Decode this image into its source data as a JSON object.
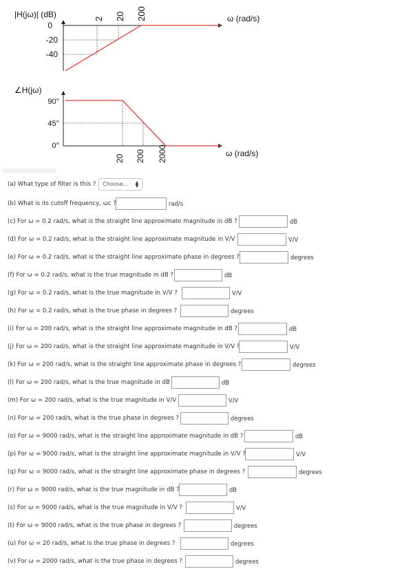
{
  "magnitude_plot": {
    "ylabel": "|H(jω)| (dB)",
    "xlabel": "ω (rad/s)",
    "y_ticks": [
      "0",
      "-20",
      "-40"
    ],
    "x_ticks": [
      "2",
      "20",
      "200"
    ],
    "line_color": "#e53935"
  },
  "phase_plot": {
    "ylabel": "∠H(jω)",
    "xlabel": "ω (rad/s)",
    "y_ticks": [
      "90°",
      "45°",
      "0°"
    ],
    "x_ticks": [
      "20",
      "200",
      "2000"
    ],
    "line_color": "#e53935"
  },
  "filter_select": {
    "placeholder": "Choose..."
  },
  "questions": [
    {
      "text": "(a) What type of filter is this ?",
      "type": "select"
    },
    {
      "text": "(b) What is its cutoff frequency, ωc ?",
      "unit": "rad/s"
    },
    {
      "text": "(c) For ω = 0.2 rad/s, what is the straight line approximate magnitude in dB ?",
      "unit": "dB"
    },
    {
      "text": "(d) For ω = 0.2 rad/s, what is the straight line approximate magnitude in V/V ?",
      "unit": "V/V"
    },
    {
      "text": "(e) For ω = 0.2 rad/s, what is the straight line approximate phase in degrees ?",
      "unit": "degrees"
    },
    {
      "text": "(f) For ω = 0.2 rad/s, what is the true magnitude in dB ?",
      "unit": "dB"
    },
    {
      "text": "(g) For ω = 0.2 rad/s, what is the true magnitude in V/V ?",
      "unit": "V/V"
    },
    {
      "text": "(h) For ω = 0.2 rad/s, what is the true phase in degrees ?",
      "unit": "degrees"
    },
    {
      "text": "(i) For ω = 200 rad/s, what is the straight line approximate magnitude in dB ?",
      "unit": "dB"
    },
    {
      "text": "(j) For ω = 200 rad/s, what is the straight line approximate magnitude in V/V ?",
      "unit": "V/V"
    },
    {
      "text": "(k) For ω = 200 rad/s, what is the straight line approximate phase in degrees ?",
      "unit": "degrees"
    },
    {
      "text": "(l) For ω = 200 rad/s, what is the true magnitude in dB ?",
      "unit": "dB"
    },
    {
      "text": "(m) For ω = 200 rad/s, what is the true magnitude in V/V ?",
      "unit": "V/V"
    },
    {
      "text": "(n) For ω = 200 rad/s, what is the true phase in degrees ?",
      "unit": "degrees"
    },
    {
      "text": "(o) For ω = 9000 rad/s, what is the straight line approximate magnitude in dB ?",
      "unit": "dB"
    },
    {
      "text": "(p) For ω = 9000 rad/s, what is the straight line approximate magnitude in V/V ?",
      "unit": "V/V"
    },
    {
      "text": "(q) For ω = 9000 rad/s, what is the straight line approximate phase in degrees ?",
      "unit": "degrees"
    },
    {
      "text": "(r) For ω = 9000 rad/s, what is the true magnitude in dB ?",
      "unit": "dB"
    },
    {
      "text": "(s) For ω = 9000 rad/s, what is the true magnitude in V/V ?",
      "unit": "V/V"
    },
    {
      "text": "(t) For ω = 9000 rad/s, what is the true phase in degrees ?",
      "unit": "degrees"
    },
    {
      "text": "(u) For ω = 20 rad/s, what is the true phase in degrees ?",
      "unit": "degrees"
    },
    {
      "text": "(v) For ω = 2000 rad/s, what is the true phase in degrees ?",
      "unit": "degrees"
    }
  ]
}
